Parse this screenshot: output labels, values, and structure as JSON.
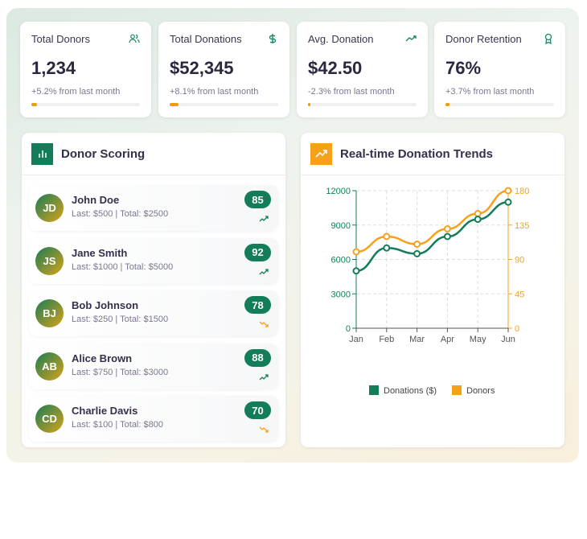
{
  "stats": [
    {
      "title": "Total Donors",
      "value": "1,234",
      "change": "+5.2% from last month",
      "icon": "users-icon",
      "progress": 0.05
    },
    {
      "title": "Total Donations",
      "value": "$52,345",
      "change": "+8.1% from last month",
      "icon": "dollar-icon",
      "progress": 0.08
    },
    {
      "title": "Avg. Donation",
      "value": "$42.50",
      "change": "-2.3% from last month",
      "icon": "trending-up-icon",
      "progress": 0.02
    },
    {
      "title": "Donor Retention",
      "value": "76%",
      "change": "+3.7% from last month",
      "icon": "award-icon",
      "progress": 0.04
    }
  ],
  "scoring": {
    "title": "Donor Scoring",
    "donors": [
      {
        "initials": "JD",
        "name": "John Doe",
        "details": "Last: $500 | Total: $2500",
        "score": "85",
        "trend": "up"
      },
      {
        "initials": "JS",
        "name": "Jane Smith",
        "details": "Last: $1000 | Total: $5000",
        "score": "92",
        "trend": "up"
      },
      {
        "initials": "BJ",
        "name": "Bob Johnson",
        "details": "Last: $250 | Total: $1500",
        "score": "78",
        "trend": "down"
      },
      {
        "initials": "AB",
        "name": "Alice Brown",
        "details": "Last: $750 | Total: $3000",
        "score": "88",
        "trend": "up"
      },
      {
        "initials": "CD",
        "name": "Charlie Davis",
        "details": "Last: $100 | Total: $800",
        "score": "70",
        "trend": "down"
      }
    ]
  },
  "trends": {
    "title": "Real-time Donation Trends"
  },
  "colors": {
    "green": "#137d5a",
    "orange": "#f7a11a",
    "progress": "#f29b05"
  },
  "chart_data": {
    "type": "line",
    "categories": [
      "Jan",
      "Feb",
      "Mar",
      "Apr",
      "May",
      "Jun"
    ],
    "series": [
      {
        "name": "Donations ($)",
        "axis": "left",
        "color": "#137d5a",
        "values": [
          5000,
          7000,
          6500,
          8000,
          9500,
          11000
        ]
      },
      {
        "name": "Donors",
        "axis": "right",
        "color": "#f7a11a",
        "values": [
          100,
          120,
          110,
          130,
          150,
          180
        ]
      }
    ],
    "y_left": {
      "range": [
        0,
        12000
      ],
      "ticks": [
        "0",
        "3000",
        "6000",
        "9000",
        "12000"
      ]
    },
    "y_right": {
      "range": [
        0,
        180
      ],
      "ticks": [
        "0",
        "45",
        "90",
        "135",
        "180"
      ]
    },
    "grid": true,
    "legend": "bottom"
  }
}
